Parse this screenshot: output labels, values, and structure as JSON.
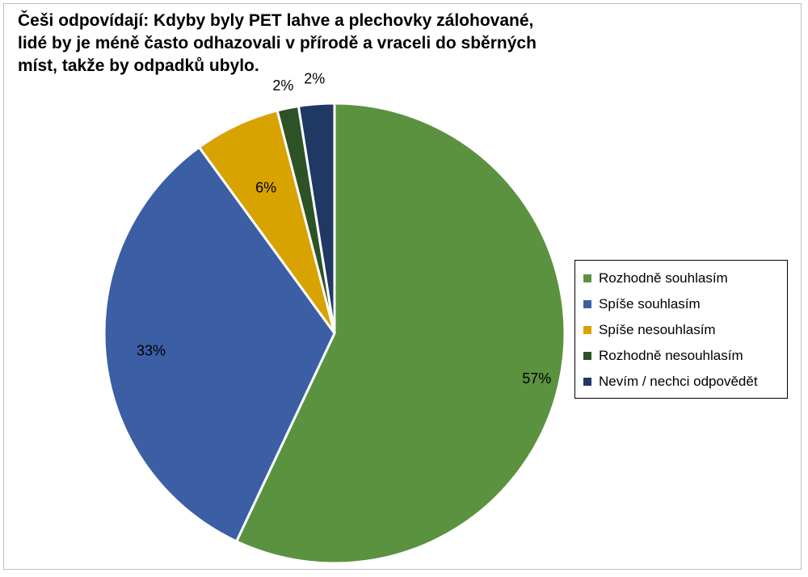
{
  "chart_data": {
    "type": "pie",
    "title_lines": [
      "Češi odpovídají: Kdyby byly PET lahve a plechovky zálohované,",
      "lidé by je méně často odhazovali v přírodě a vraceli do sběrných",
      "míst, takže by odpadků ubylo."
    ],
    "unit": "%",
    "slices": [
      {
        "label": "Rozhodně souhlasím",
        "value": 57,
        "display": "57%",
        "color": "#5b9240"
      },
      {
        "label": "Spíše souhlasím",
        "value": 33,
        "display": "33%",
        "color": "#3b5ea5"
      },
      {
        "label": "Spíše nesouhlasím",
        "value": 6,
        "display": "6%",
        "color": "#d8a200"
      },
      {
        "label": "Rozhodně nesouhlasím",
        "value": 1.5,
        "display": "2%",
        "color": "#2d5226"
      },
      {
        "label": "Nevím / nechci odpovědět",
        "value": 2.5,
        "display": "2%",
        "color": "#1f3864"
      }
    ],
    "start": "12 o'clock",
    "direction": "clockwise",
    "legend": {
      "position": "right"
    }
  }
}
